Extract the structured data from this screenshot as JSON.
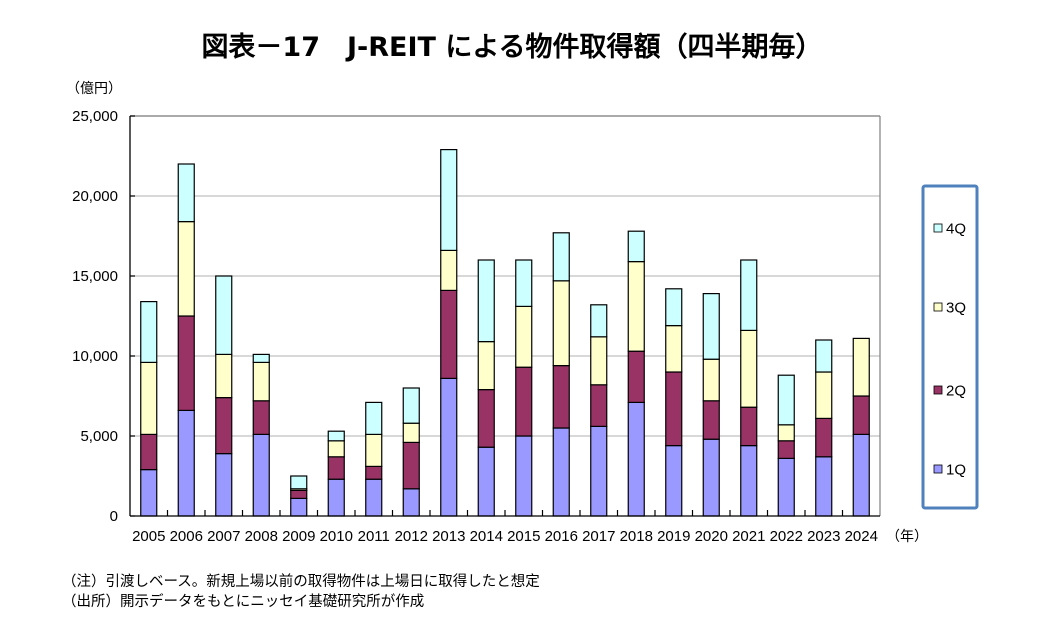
{
  "chart_data": {
    "type": "bar",
    "stacked": true,
    "title": "図表－17　J-REIT による物件取得額（四半期毎）",
    "ylabel": "（億円）",
    "xlabel": "（年）",
    "ylim": [
      0,
      25000
    ],
    "yticks": [
      0,
      5000,
      10000,
      15000,
      20000,
      25000
    ],
    "ytick_labels": [
      "0",
      "5,000",
      "10,000",
      "15,000",
      "20,000",
      "25,000"
    ],
    "grid": true,
    "legend_position": "right",
    "categories": [
      "2005",
      "2006",
      "2007",
      "2008",
      "2009",
      "2010",
      "2011",
      "2012",
      "2013",
      "2014",
      "2015",
      "2016",
      "2017",
      "2018",
      "2019",
      "2020",
      "2021",
      "2022",
      "2023",
      "2024"
    ],
    "series": [
      {
        "name": "1Q",
        "color": "#9999ff",
        "values": [
          2900,
          6600,
          3900,
          5100,
          1100,
          2300,
          2300,
          1700,
          8600,
          4300,
          5000,
          5500,
          5600,
          7100,
          4400,
          4800,
          4400,
          3600,
          3700,
          5100
        ]
      },
      {
        "name": "2Q",
        "color": "#993366",
        "values": [
          2200,
          5900,
          3500,
          2100,
          500,
          1400,
          800,
          2900,
          5500,
          3600,
          4300,
          3900,
          2600,
          3200,
          4600,
          2400,
          2400,
          1100,
          2400,
          2400
        ]
      },
      {
        "name": "3Q",
        "color": "#ffffcc",
        "values": [
          4500,
          5900,
          2700,
          2400,
          100,
          1000,
          2000,
          1200,
          2500,
          3000,
          3800,
          5300,
          3000,
          5600,
          2900,
          2600,
          4800,
          1000,
          2900,
          3600
        ]
      },
      {
        "name": "4Q",
        "color": "#ccffff",
        "values": [
          3800,
          3600,
          4900,
          500,
          800,
          600,
          2000,
          2200,
          6300,
          5100,
          2900,
          3000,
          2000,
          1900,
          2300,
          4100,
          4400,
          3100,
          2000,
          0
        ]
      }
    ],
    "legend_border_color": "#4f81bd"
  },
  "notes": [
    "（注）引渡しベース。新規上場以前の取得物件は上場日に取得したと想定",
    "（出所）開示データをもとにニッセイ基礎研究所が作成"
  ]
}
